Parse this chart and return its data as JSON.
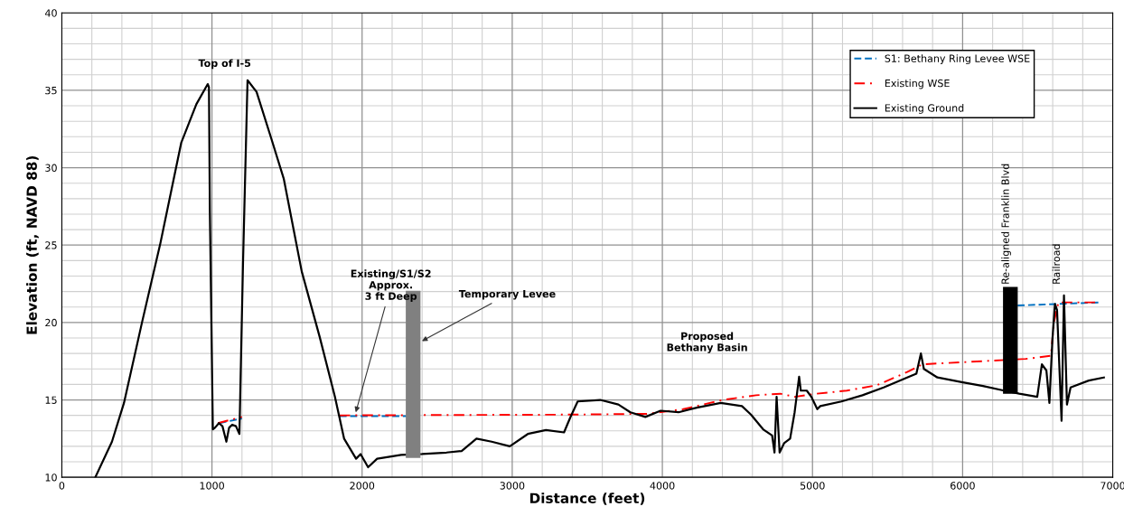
{
  "chart_data": {
    "type": "line",
    "xlabel": "Distance (feet)",
    "ylabel": "Elevation (ft, NAVD 88)",
    "xlim": [
      0,
      7000
    ],
    "xticks": [
      0,
      1000,
      2000,
      3000,
      4000,
      5000,
      6000,
      7000
    ],
    "ylim": [
      10,
      40
    ],
    "yticks": [
      10,
      15,
      20,
      25,
      30,
      35,
      40
    ],
    "grid": true,
    "legend": "top right",
    "series": [
      {
        "name": "S1: Bethany Ring Levee WSE",
        "color": "#0070c0",
        "line_style": "dashed",
        "x": [
          1050,
          1200,
          1500,
          1850,
          2300,
          4000,
          6366,
          6920
        ],
        "values": [
          13.5,
          13.8,
          null,
          13.95,
          13.95,
          null,
          21.1,
          21.3
        ]
      },
      {
        "name": "Existing WSE",
        "color": "#ff0000",
        "line_style": "dashdot",
        "x": [
          1040,
          1120,
          1200,
          1500,
          1850,
          3400,
          3897,
          4139,
          4403,
          4624,
          4786,
          4881,
          5027,
          5229,
          5430,
          5631,
          5732,
          6034,
          6420,
          6588,
          6608,
          6638,
          6900
        ],
        "values": [
          13.5,
          13.7,
          13.9,
          null,
          14.0,
          14.05,
          14.1,
          14.4,
          15.0,
          15.3,
          15.4,
          15.2,
          15.4,
          15.6,
          15.95,
          16.8,
          17.3,
          17.45,
          17.65,
          17.85,
          20.0,
          21.3,
          21.3
        ]
      },
      {
        "name": "Existing Ground",
        "color": "#000000",
        "line_style": "solid",
        "x": [
          223,
          334,
          414,
          534,
          655,
          795,
          896,
          972,
          980,
          986,
          1006,
          1020,
          1046,
          1070,
          1096,
          1114,
          1135,
          1160,
          1183,
          1207,
          1237,
          1297,
          1398,
          1478,
          1598,
          1718,
          1819,
          1880,
          1960,
          1990,
          2040,
          2100,
          2260,
          2400,
          2562,
          2663,
          2762,
          2863,
          2984,
          3104,
          3225,
          3345,
          3386,
          3436,
          3586,
          3707,
          3787,
          3887,
          3988,
          4108,
          4229,
          4389,
          4530,
          4590,
          4671,
          4731,
          4747,
          4761,
          4781,
          4811,
          4851,
          4881,
          4911,
          4922,
          4962,
          4992,
          5032,
          5052,
          5193,
          5333,
          5474,
          5620,
          5692,
          5722,
          5742,
          5832,
          5994,
          6135,
          6276,
          6377,
          6497,
          6528,
          6558,
          6578,
          6598,
          6615,
          6629,
          6659,
          6675,
          6695,
          6719,
          6840,
          6941
        ],
        "values": [
          10.0,
          12.3,
          14.8,
          20.0,
          25.05,
          31.6,
          34.1,
          35.4,
          35.2,
          27.2,
          13.1,
          13.2,
          13.5,
          13.3,
          12.3,
          13.2,
          13.4,
          13.3,
          12.8,
          23.9,
          35.65,
          34.9,
          31.8,
          29.3,
          23.3,
          19.05,
          15.2,
          12.5,
          11.2,
          11.5,
          10.65,
          11.2,
          11.45,
          11.5,
          11.6,
          11.7,
          12.5,
          12.3,
          12.0,
          12.8,
          13.05,
          12.9,
          13.85,
          14.9,
          15.0,
          14.7,
          14.2,
          13.9,
          14.3,
          14.2,
          14.5,
          14.8,
          14.6,
          14.05,
          13.1,
          12.7,
          11.6,
          15.2,
          11.6,
          12.2,
          12.5,
          14.2,
          16.5,
          15.6,
          15.6,
          15.2,
          14.4,
          14.6,
          14.9,
          15.3,
          15.8,
          16.4,
          16.7,
          18.0,
          17.0,
          16.45,
          16.15,
          15.9,
          15.6,
          15.4,
          15.2,
          17.3,
          16.9,
          14.8,
          18.9,
          21.2,
          20.8,
          13.65,
          21.75,
          14.7,
          15.8,
          16.25,
          16.45
        ]
      },
      {
        "type": "bar",
        "x": [
          2340,
          6318
        ],
        "base": [
          11.25,
          15.4
        ],
        "values": [
          10.8,
          6.9
        ],
        "colors": [
          "#808080",
          "#000000"
        ]
      }
    ],
    "annotations": [
      "Top of I-5",
      {
        "text": "Existing/S1/S2\nApprox.\n3 ft Deep",
        "x": 1958,
        "y": 14.2
      },
      {
        "text": "Temporary Levee",
        "x": 2399,
        "y": 18.8
      },
      "Proposed\nBethany Basin",
      {
        "text": "Re-aligned Franklin Blvd",
        "x": 6290,
        "y": 22.45
      },
      "Railroad"
    ]
  }
}
